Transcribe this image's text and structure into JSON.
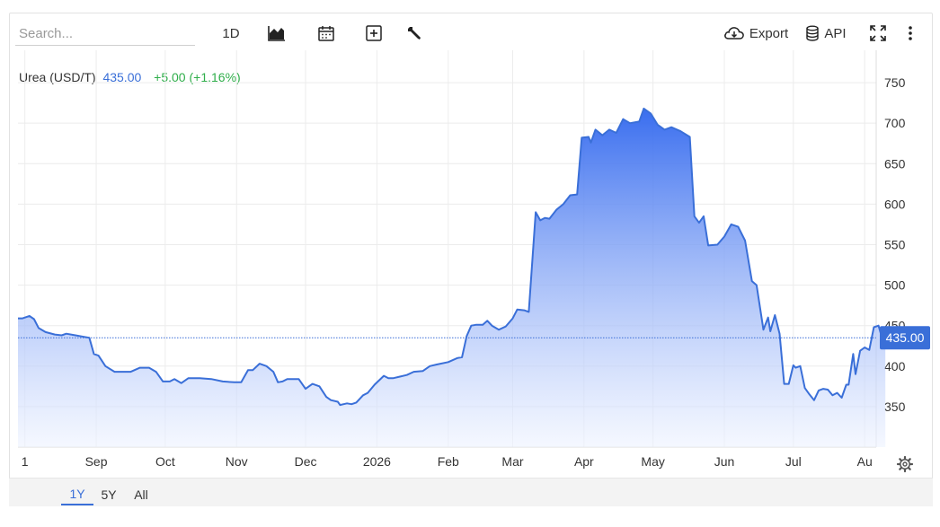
{
  "toolbar": {
    "search_placeholder": "Search...",
    "interval_label": "1D",
    "chart_type_icon": "area-chart-icon",
    "calendar_icon": "calendar-icon",
    "compare_icon": "plus-square-icon",
    "tools_icon": "wrench-icon",
    "export_label": "Export",
    "export_icon": "cloud-download-icon",
    "api_label": "API",
    "api_icon": "database-icon",
    "fullscreen_icon": "expand-icon",
    "more_icon": "more-vertical-icon"
  },
  "legend": {
    "symbol": "Urea (USD/T)",
    "last": "435.00",
    "change": "+5.00 (+1.16%)"
  },
  "price_tag": "435.00",
  "colors": {
    "line": "#3a6fd8",
    "fill_top": "#2f66ee",
    "fill_bottom": "#eef3ff",
    "change_up": "#2fae4a",
    "last_price": "#3a6fd8"
  },
  "range": {
    "buttons": [
      "1Y",
      "5Y",
      "All"
    ],
    "active": "1Y"
  },
  "settings_icon": "gear-icon",
  "chart_data": {
    "type": "area",
    "title": "",
    "xlabel": "",
    "ylabel": "",
    "ylim": [
      300,
      790
    ],
    "yticks": [
      350,
      400,
      450,
      500,
      550,
      600,
      650,
      700,
      750
    ],
    "xticks": [
      {
        "label": "1",
        "date": "2025-08-01"
      },
      {
        "label": "Sep",
        "date": "2025-09-01"
      },
      {
        "label": "Oct",
        "date": "2025-10-01"
      },
      {
        "label": "Nov",
        "date": "2025-11-01"
      },
      {
        "label": "Dec",
        "date": "2025-12-01"
      },
      {
        "label": "2026",
        "date": "2026-01-01"
      },
      {
        "label": "Feb",
        "date": "2026-02-01"
      },
      {
        "label": "Mar",
        "date": "2026-03-01"
      },
      {
        "label": "Apr",
        "date": "2026-04-01"
      },
      {
        "label": "May",
        "date": "2026-05-01"
      },
      {
        "label": "Jun",
        "date": "2026-06-01"
      },
      {
        "label": "Jul",
        "date": "2026-07-01"
      },
      {
        "label": "Au",
        "date": "2026-08-01"
      }
    ],
    "x_range": [
      "2025-07-29",
      "2026-08-06"
    ],
    "last_value": 435.0,
    "grid": true,
    "series": [
      {
        "points": [
          [
            "2025-07-29",
            459
          ],
          [
            "2025-07-31",
            459
          ],
          [
            "2025-08-03",
            462
          ],
          [
            "2025-08-05",
            458
          ],
          [
            "2025-08-07",
            447
          ],
          [
            "2025-08-10",
            442
          ],
          [
            "2025-08-14",
            439
          ],
          [
            "2025-08-17",
            438
          ],
          [
            "2025-08-19",
            440
          ],
          [
            "2025-08-23",
            438
          ],
          [
            "2025-08-27",
            436
          ],
          [
            "2025-08-29",
            435
          ],
          [
            "2025-08-31",
            415
          ],
          [
            "2025-09-02",
            413
          ],
          [
            "2025-09-05",
            400
          ],
          [
            "2025-09-09",
            393
          ],
          [
            "2025-09-12",
            393
          ],
          [
            "2025-09-16",
            393
          ],
          [
            "2025-09-20",
            398
          ],
          [
            "2025-09-24",
            398
          ],
          [
            "2025-09-27",
            393
          ],
          [
            "2025-09-30",
            381
          ],
          [
            "2025-10-03",
            381
          ],
          [
            "2025-10-05",
            384
          ],
          [
            "2025-10-08",
            379
          ],
          [
            "2025-10-11",
            385
          ],
          [
            "2025-10-16",
            385
          ],
          [
            "2025-10-21",
            384
          ],
          [
            "2025-10-26",
            381
          ],
          [
            "2025-10-31",
            380
          ],
          [
            "2025-11-03",
            380
          ],
          [
            "2025-11-06",
            395
          ],
          [
            "2025-11-08",
            395
          ],
          [
            "2025-11-11",
            403
          ],
          [
            "2025-11-14",
            400
          ],
          [
            "2025-11-17",
            393
          ],
          [
            "2025-11-19",
            380
          ],
          [
            "2025-11-21",
            381
          ],
          [
            "2025-11-23",
            384
          ],
          [
            "2025-11-28",
            384
          ],
          [
            "2025-12-01",
            372
          ],
          [
            "2025-12-04",
            378
          ],
          [
            "2025-12-07",
            375
          ],
          [
            "2025-12-10",
            362
          ],
          [
            "2025-12-12",
            358
          ],
          [
            "2025-12-15",
            356
          ],
          [
            "2025-12-16",
            352
          ],
          [
            "2025-12-19",
            354
          ],
          [
            "2025-12-21",
            353
          ],
          [
            "2025-12-23",
            355
          ],
          [
            "2025-12-26",
            364
          ],
          [
            "2025-12-28",
            367
          ],
          [
            "2025-12-31",
            377
          ],
          [
            "2026-01-04",
            388
          ],
          [
            "2026-01-06",
            385
          ],
          [
            "2026-01-08",
            385
          ],
          [
            "2026-01-11",
            387
          ],
          [
            "2026-01-14",
            389
          ],
          [
            "2026-01-17",
            393
          ],
          [
            "2026-01-21",
            394
          ],
          [
            "2026-01-24",
            400
          ],
          [
            "2026-01-27",
            402
          ],
          [
            "2026-02-01",
            405
          ],
          [
            "2026-02-05",
            410
          ],
          [
            "2026-02-07",
            411
          ],
          [
            "2026-02-09",
            437
          ],
          [
            "2026-02-11",
            450
          ],
          [
            "2026-02-13",
            451
          ],
          [
            "2026-02-16",
            451
          ],
          [
            "2026-02-18",
            456
          ],
          [
            "2026-02-20",
            450
          ],
          [
            "2026-02-23",
            445
          ],
          [
            "2026-02-26",
            449
          ],
          [
            "2026-03-01",
            459
          ],
          [
            "2026-03-03",
            470
          ],
          [
            "2026-03-06",
            469
          ],
          [
            "2026-03-08",
            467
          ],
          [
            "2026-03-11",
            590
          ],
          [
            "2026-03-13",
            580
          ],
          [
            "2026-03-15",
            583
          ],
          [
            "2026-03-17",
            582
          ],
          [
            "2026-03-20",
            593
          ],
          [
            "2026-03-23",
            600
          ],
          [
            "2026-03-26",
            611
          ],
          [
            "2026-03-29",
            612
          ],
          [
            "2026-03-31",
            682
          ],
          [
            "2026-04-03",
            683
          ],
          [
            "2026-04-04",
            676
          ],
          [
            "2026-04-06",
            692
          ],
          [
            "2026-04-09",
            685
          ],
          [
            "2026-04-12",
            692
          ],
          [
            "2026-04-15",
            688
          ],
          [
            "2026-04-18",
            705
          ],
          [
            "2026-04-21",
            700
          ],
          [
            "2026-04-25",
            702
          ],
          [
            "2026-04-27",
            718
          ],
          [
            "2026-04-30",
            712
          ],
          [
            "2026-05-03",
            698
          ],
          [
            "2026-05-06",
            692
          ],
          [
            "2026-05-09",
            695
          ],
          [
            "2026-05-13",
            690
          ],
          [
            "2026-05-17",
            683
          ],
          [
            "2026-05-19",
            585
          ],
          [
            "2026-05-21",
            577
          ],
          [
            "2026-05-23",
            585
          ],
          [
            "2026-05-25",
            549
          ],
          [
            "2026-05-29",
            550
          ],
          [
            "2026-06-01",
            560
          ],
          [
            "2026-06-04",
            575
          ],
          [
            "2026-06-07",
            572
          ],
          [
            "2026-06-10",
            555
          ],
          [
            "2026-06-13",
            505
          ],
          [
            "2026-06-15",
            500
          ],
          [
            "2026-06-18",
            445
          ],
          [
            "2026-06-20",
            460
          ],
          [
            "2026-06-21",
            443
          ],
          [
            "2026-06-23",
            463
          ],
          [
            "2026-06-25",
            440
          ],
          [
            "2026-06-27",
            378
          ],
          [
            "2026-06-29",
            378
          ],
          [
            "2026-07-01",
            401
          ],
          [
            "2026-07-02",
            398
          ],
          [
            "2026-07-04",
            400
          ],
          [
            "2026-07-06",
            373
          ],
          [
            "2026-07-08",
            365
          ],
          [
            "2026-07-10",
            358
          ],
          [
            "2026-07-12",
            370
          ],
          [
            "2026-07-14",
            372
          ],
          [
            "2026-07-16",
            371
          ],
          [
            "2026-07-18",
            364
          ],
          [
            "2026-07-20",
            367
          ],
          [
            "2026-07-22",
            361
          ],
          [
            "2026-07-24",
            377
          ],
          [
            "2026-07-25",
            377
          ],
          [
            "2026-07-27",
            415
          ],
          [
            "2026-07-28",
            390
          ],
          [
            "2026-07-30",
            419
          ],
          [
            "2026-08-01",
            423
          ],
          [
            "2026-08-03",
            420
          ],
          [
            "2026-08-05",
            448
          ],
          [
            "2026-08-07",
            450
          ],
          [
            "2026-08-09",
            430
          ],
          [
            "2026-08-10",
            435
          ]
        ]
      }
    ]
  }
}
